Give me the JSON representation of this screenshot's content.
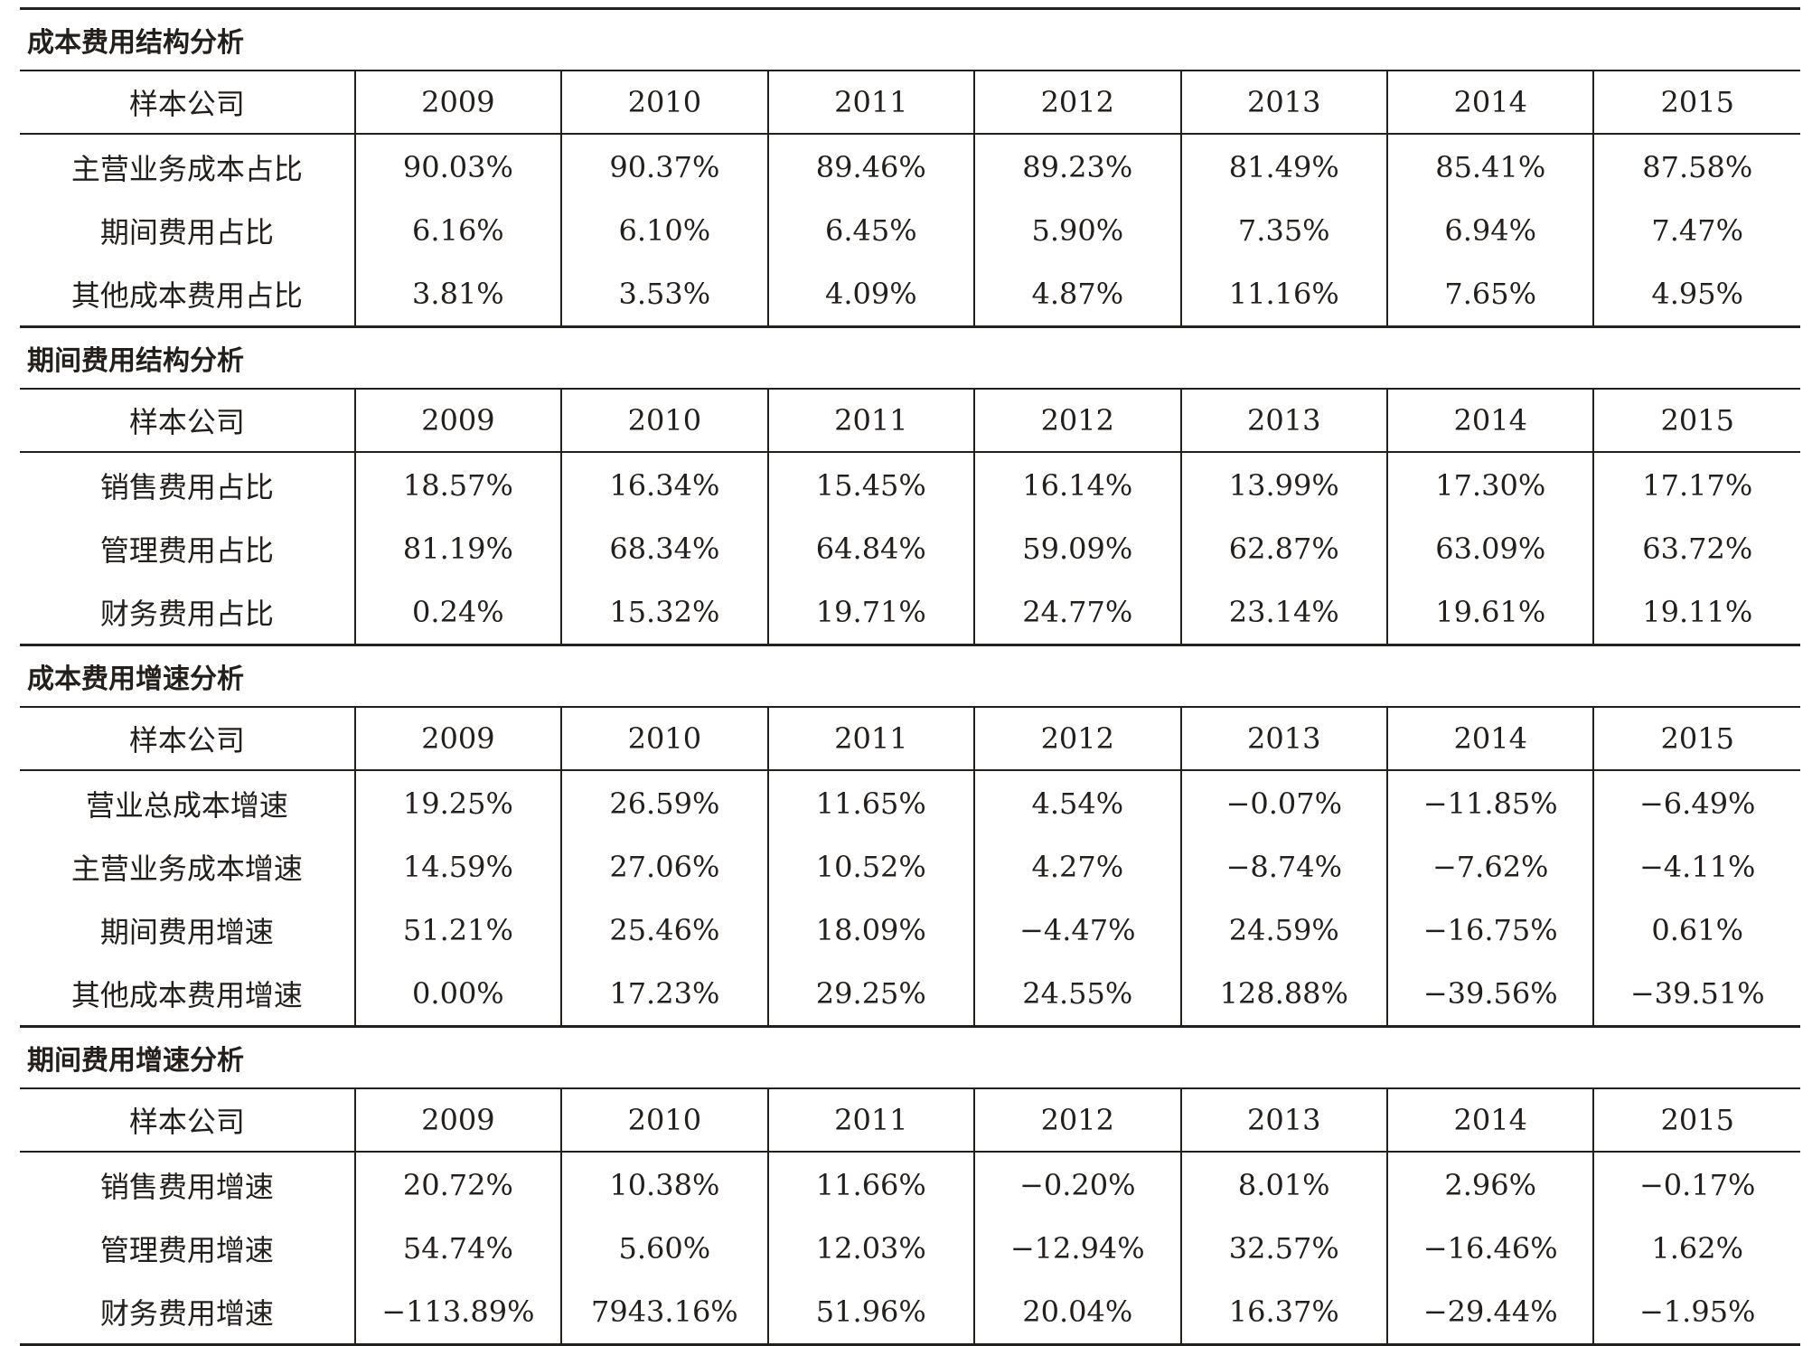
{
  "header_label": "样本公司",
  "years": [
    "2009",
    "2010",
    "2011",
    "2012",
    "2013",
    "2014",
    "2015"
  ],
  "sections": [
    {
      "title": "成本费用结构分析",
      "rows": [
        {
          "label": "主营业务成本占比",
          "values": [
            "90.03%",
            "90.37%",
            "89.46%",
            "89.23%",
            "81.49%",
            "85.41%",
            "87.58%"
          ]
        },
        {
          "label": "期间费用占比",
          "values": [
            "6.16%",
            "6.10%",
            "6.45%",
            "5.90%",
            "7.35%",
            "6.94%",
            "7.47%"
          ]
        },
        {
          "label": "其他成本费用占比",
          "values": [
            "3.81%",
            "3.53%",
            "4.09%",
            "4.87%",
            "11.16%",
            "7.65%",
            "4.95%"
          ]
        }
      ]
    },
    {
      "title": "期间费用结构分析",
      "rows": [
        {
          "label": "销售费用占比",
          "values": [
            "18.57%",
            "16.34%",
            "15.45%",
            "16.14%",
            "13.99%",
            "17.30%",
            "17.17%"
          ]
        },
        {
          "label": "管理费用占比",
          "values": [
            "81.19%",
            "68.34%",
            "64.84%",
            "59.09%",
            "62.87%",
            "63.09%",
            "63.72%"
          ]
        },
        {
          "label": "财务费用占比",
          "values": [
            "0.24%",
            "15.32%",
            "19.71%",
            "24.77%",
            "23.14%",
            "19.61%",
            "19.11%"
          ]
        }
      ]
    },
    {
      "title": "成本费用增速分析",
      "rows": [
        {
          "label": "营业总成本增速",
          "values": [
            "19.25%",
            "26.59%",
            "11.65%",
            "4.54%",
            "−0.07%",
            "−11.85%",
            "−6.49%"
          ]
        },
        {
          "label": "主营业务成本增速",
          "values": [
            "14.59%",
            "27.06%",
            "10.52%",
            "4.27%",
            "−8.74%",
            "−7.62%",
            "−4.11%"
          ]
        },
        {
          "label": "期间费用增速",
          "values": [
            "51.21%",
            "25.46%",
            "18.09%",
            "−4.47%",
            "24.59%",
            "−16.75%",
            "0.61%"
          ]
        },
        {
          "label": "其他成本费用增速",
          "values": [
            "0.00%",
            "17.23%",
            "29.25%",
            "24.55%",
            "128.88%",
            "−39.56%",
            "−39.51%"
          ]
        }
      ]
    },
    {
      "title": "期间费用增速分析",
      "rows": [
        {
          "label": "销售费用增速",
          "values": [
            "20.72%",
            "10.38%",
            "11.66%",
            "−0.20%",
            "8.01%",
            "2.96%",
            "−0.17%"
          ]
        },
        {
          "label": "管理费用增速",
          "values": [
            "54.74%",
            "5.60%",
            "12.03%",
            "−12.94%",
            "32.57%",
            "−16.46%",
            "1.62%"
          ]
        },
        {
          "label": "财务费用增速",
          "values": [
            "−113.89%",
            "7943.16%",
            "51.96%",
            "20.04%",
            "16.37%",
            "−29.44%",
            "−1.95%"
          ]
        }
      ]
    }
  ]
}
